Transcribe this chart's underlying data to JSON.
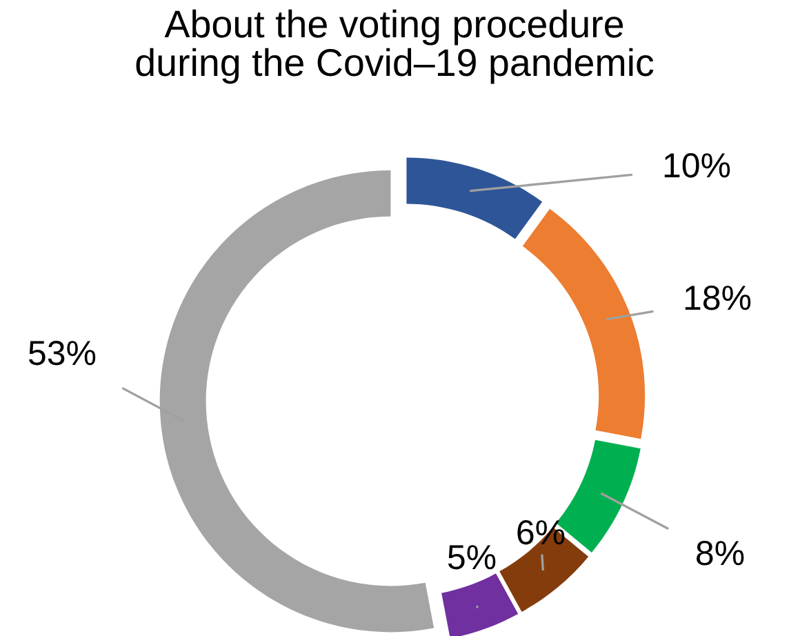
{
  "chart_data": {
    "type": "donut",
    "title": "About the voting procedure\nduring the Covid–19 pandemic",
    "categories": [
      null,
      null,
      null,
      null,
      null,
      null
    ],
    "values": [
      10,
      18,
      8,
      6,
      5,
      53
    ],
    "colors": [
      "#2e5597",
      "#ed7d31",
      "#00b050",
      "#843c0c",
      "#7030a0",
      "#a5a5a5"
    ],
    "value_labels": [
      "10%",
      "18%",
      "8%",
      "6%",
      "5%",
      "53%"
    ],
    "legend": false
  }
}
